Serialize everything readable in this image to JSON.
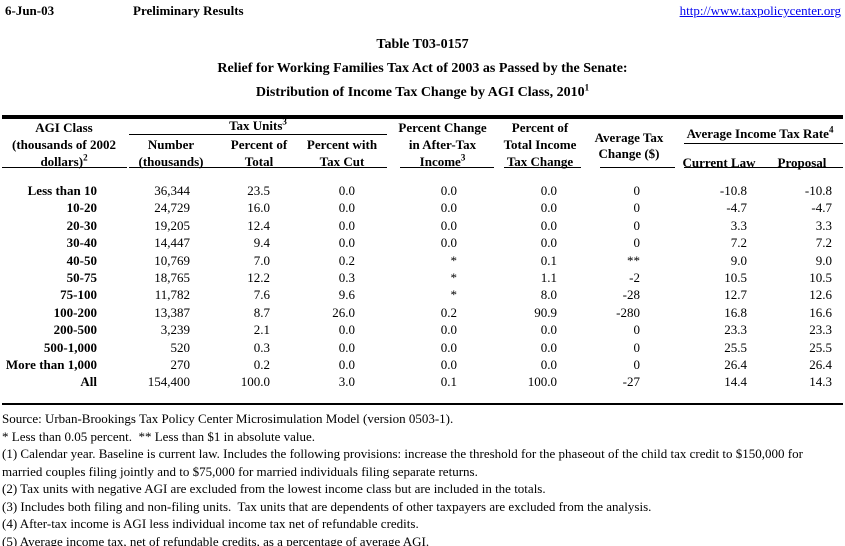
{
  "meta": {
    "date": "6-Jun-03",
    "status": "Preliminary Results",
    "url": "http://www.taxpolicycenter.org"
  },
  "title": {
    "table_number": "Table T03-0157",
    "subtitle": "Relief for Working Families Tax Act of 2003 as Passed by the Senate:",
    "subtitle2": "Distribution of Income Tax Change by AGI Class, 2010",
    "subtitle2_superscript": "1"
  },
  "table": {
    "header": {
      "agi_class": {
        "line1": "AGI Class",
        "line2": "(thousands of 2002",
        "line3": "dollars)",
        "superscript": "2"
      },
      "tax_units_group": {
        "label": "Tax Units",
        "superscript": "3"
      },
      "number": {
        "line1": "Number",
        "line2": "(thousands)"
      },
      "percent_of_total": {
        "line1": "Percent of",
        "line2": "Total"
      },
      "percent_with_tax_cut": {
        "line1": "Percent with",
        "line2": "Tax Cut"
      },
      "percent_change_after_tax": {
        "line1": "Percent Change",
        "line2": "in After-Tax",
        "line3": "Income",
        "superscript": "3"
      },
      "percent_of_total_income_tax_change": {
        "line1": "Percent of",
        "line2": "Total Income",
        "line3": "Tax Change"
      },
      "average_tax_change": {
        "line1": "Average Tax",
        "line2": "Change ($)"
      },
      "average_income_tax_rate_group": {
        "label": "Average Income Tax Rate",
        "superscript": "4"
      },
      "current_law": "Current Law",
      "proposal": "Proposal"
    },
    "rows": [
      {
        "agi_class": "Less than 10",
        "cells": [
          "36,344",
          "23.5",
          "0.0",
          "0.0",
          "0.0",
          "0",
          "-10.8",
          "-10.8"
        ]
      },
      {
        "agi_class": "10-20",
        "cells": [
          "24,729",
          "16.0",
          "0.0",
          "0.0",
          "0.0",
          "0",
          "-4.7",
          "-4.7"
        ]
      },
      {
        "agi_class": "20-30",
        "cells": [
          "19,205",
          "12.4",
          "0.0",
          "0.0",
          "0.0",
          "0",
          "3.3",
          "3.3"
        ]
      },
      {
        "agi_class": "30-40",
        "cells": [
          "14,447",
          "9.4",
          "0.0",
          "0.0",
          "0.0",
          "0",
          "7.2",
          "7.2"
        ]
      },
      {
        "agi_class": "40-50",
        "cells": [
          "10,769",
          "7.0",
          "0.2",
          "*",
          "0.1",
          "**",
          "9.0",
          "9.0"
        ]
      },
      {
        "agi_class": "50-75",
        "cells": [
          "18,765",
          "12.2",
          "0.3",
          "*",
          "1.1",
          "-2",
          "10.5",
          "10.5"
        ]
      },
      {
        "agi_class": "75-100",
        "cells": [
          "11,782",
          "7.6",
          "9.6",
          "*",
          "8.0",
          "-28",
          "12.7",
          "12.6"
        ]
      },
      {
        "agi_class": "100-200",
        "cells": [
          "13,387",
          "8.7",
          "26.0",
          "0.2",
          "90.9",
          "-280",
          "16.8",
          "16.6"
        ]
      },
      {
        "agi_class": "200-500",
        "cells": [
          "3,239",
          "2.1",
          "0.0",
          "0.0",
          "0.0",
          "0",
          "23.3",
          "23.3"
        ]
      },
      {
        "agi_class": "500-1,000",
        "cells": [
          "520",
          "0.3",
          "0.0",
          "0.0",
          "0.0",
          "0",
          "25.5",
          "25.5"
        ]
      },
      {
        "agi_class": "More than 1,000",
        "cells": [
          "270",
          "0.2",
          "0.0",
          "0.0",
          "0.0",
          "0",
          "26.4",
          "26.4"
        ]
      },
      {
        "agi_class": "All",
        "cells": [
          "154,400",
          "100.0",
          "3.0",
          "0.1",
          "100.0",
          "-27",
          "14.4",
          "14.3"
        ]
      }
    ]
  },
  "footnotes": [
    "Source: Urban-Brookings Tax Policy Center Microsimulation Model (version 0503-1).",
    "* Less than 0.05 percent.  ** Less than $1 in absolute value.",
    "(1) Calendar year. Baseline is current law. Includes the following provisions: increase the threshold for the phaseout of the child tax credit to $150,000 for married couples filing jointly and to $75,000 for married individuals filing separate returns.",
    "(2) Tax units with negative AGI are excluded from the lowest income class but are included in the totals.",
    "(3) Includes both filing and non-filing units.  Tax units that are dependents of other taxpayers are excluded from the analysis.",
    "(4) After-tax income is AGI less individual income tax net of refundable credits.",
    "(5) Average income tax, net of refundable credits, as a percentage of average AGI."
  ]
}
